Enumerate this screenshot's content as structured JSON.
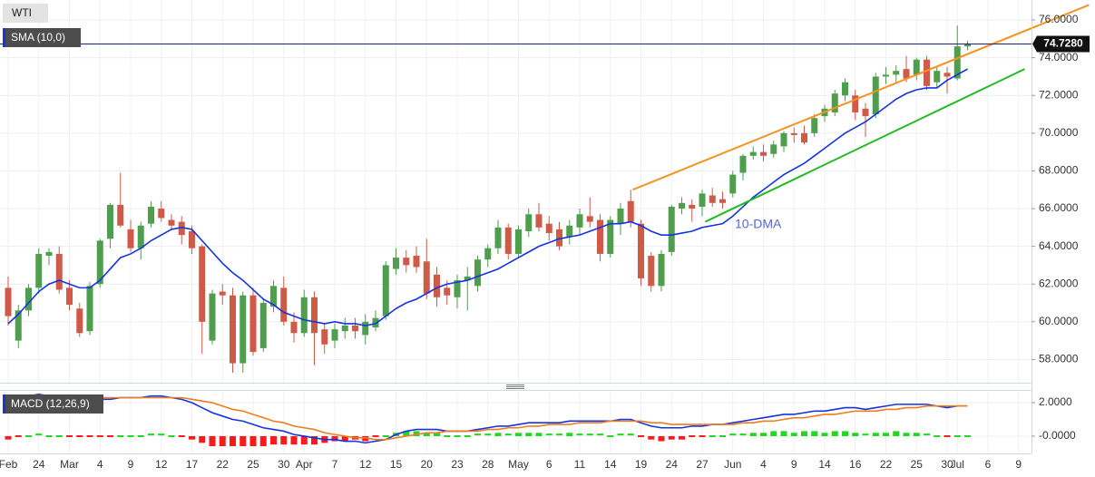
{
  "chart_data": [
    {
      "type": "candlestick",
      "name": "WTI",
      "categories": [
        "Feb",
        null,
        null,
        "24",
        null,
        null,
        "Mar",
        null,
        null,
        "4",
        null,
        null,
        "9",
        null,
        null,
        "12",
        null,
        null,
        "17",
        null,
        null,
        "22",
        null,
        null,
        "25",
        null,
        null,
        "30",
        null,
        "Apr",
        null,
        null,
        "7",
        null,
        null,
        "12",
        null,
        null,
        "15",
        null,
        null,
        "20",
        null,
        null,
        "23",
        null,
        null,
        "28",
        null,
        null,
        "May",
        null,
        null,
        "6",
        null,
        null,
        "11",
        null,
        null,
        "14",
        null,
        null,
        "19",
        null,
        null,
        "24",
        null,
        null,
        "27",
        null,
        null,
        "Jun",
        null,
        null,
        "4",
        null,
        null,
        "9",
        null,
        null,
        "14",
        null,
        null,
        "16",
        null,
        null,
        "22",
        null,
        null,
        "25",
        null,
        null,
        "30",
        "Jul",
        null,
        null,
        "6",
        null,
        null,
        "9"
      ],
      "open": [
        61.8,
        59.0,
        60.6,
        61.8,
        63.5,
        63.6,
        61.8,
        60.7,
        59.5,
        62.0,
        64.4,
        66.2,
        64.9,
        63.9,
        65.2,
        66.0,
        65.4,
        65.3,
        64.8,
        64.0,
        59.0,
        61.6,
        61.4,
        57.8,
        61.4,
        58.6,
        60.8,
        61.8,
        60.0,
        59.4,
        61.3,
        59.6,
        59.0,
        59.5,
        59.8,
        59.3,
        59.7,
        60.3,
        62.8,
        63.4,
        63.5,
        63.2,
        62.5,
        61.8,
        61.3,
        62.2,
        61.9,
        63.3,
        63.9,
        65.0,
        63.6,
        64.8,
        65.7,
        65.2,
        64.9,
        64.5,
        65.0,
        65.6,
        65.4,
        63.6,
        65.2,
        66.4,
        65.2,
        63.5,
        61.9,
        63.7,
        66.0,
        66.2,
        66.1,
        66.7,
        66.5,
        66.8,
        67.9,
        68.8,
        69.0,
        68.9,
        69.3,
        70.0,
        70.0,
        70.0,
        70.9,
        71.1,
        72.0,
        72.0,
        71.3,
        71.0,
        73.0,
        73.1,
        73.4,
        73.1,
        73.9,
        72.7,
        73.2,
        72.9,
        74.6,
        null,
        null,
        null,
        null,
        null
      ],
      "high": [
        62.4,
        60.9,
        62.0,
        63.9,
        63.9,
        64.0,
        62.2,
        61.0,
        62.1,
        64.4,
        66.3,
        67.9,
        65.4,
        65.3,
        66.4,
        66.4,
        65.7,
        65.6,
        65.1,
        64.1,
        61.7,
        62.0,
        61.8,
        61.6,
        61.8,
        61.2,
        62.2,
        62.4,
        60.5,
        61.7,
        61.6,
        59.9,
        59.9,
        60.2,
        60.2,
        60.4,
        60.6,
        63.2,
        63.9,
        63.8,
        64.0,
        64.4,
        62.9,
        62.2,
        62.5,
        62.9,
        63.5,
        64.1,
        65.4,
        65.2,
        65.1,
        66.0,
        66.3,
        65.6,
        65.3,
        65.4,
        66.0,
        66.6,
        65.7,
        65.6,
        66.3,
        67.0,
        65.4,
        63.7,
        63.8,
        66.2,
        66.6,
        66.5,
        67.0,
        67.1,
        66.9,
        68.0,
        68.9,
        69.3,
        69.4,
        69.6,
        70.1,
        70.3,
        70.4,
        71.0,
        71.5,
        72.3,
        72.9,
        72.3,
        71.6,
        73.2,
        73.5,
        73.6,
        74.1,
        74.0,
        74.1,
        73.5,
        73.5,
        75.7,
        74.9,
        null,
        null,
        null,
        null,
        null
      ],
      "low": [
        59.8,
        58.6,
        60.3,
        61.5,
        63.0,
        61.5,
        60.6,
        59.2,
        59.3,
        61.8,
        63.9,
        65.0,
        63.7,
        63.3,
        65.0,
        65.3,
        64.9,
        64.1,
        63.6,
        58.3,
        58.8,
        60.9,
        57.3,
        57.3,
        58.2,
        58.4,
        60.5,
        59.8,
        58.9,
        59.2,
        57.7,
        58.3,
        58.6,
        59.1,
        59.1,
        58.8,
        59.5,
        60.1,
        62.5,
        62.6,
        62.6,
        61.2,
        60.8,
        60.9,
        60.7,
        60.6,
        61.6,
        62.9,
        63.6,
        63.3,
        63.4,
        64.5,
        64.8,
        64.3,
        63.8,
        64.1,
        64.6,
        65.0,
        63.2,
        63.4,
        64.6,
        65.0,
        61.9,
        61.6,
        61.6,
        63.5,
        65.7,
        65.3,
        65.6,
        66.1,
        66.0,
        66.6,
        67.5,
        68.6,
        68.5,
        68.7,
        69.0,
        69.5,
        69.4,
        69.8,
        70.6,
        70.9,
        71.7,
        70.7,
        69.8,
        70.8,
        72.6,
        72.7,
        72.7,
        72.8,
        72.3,
        72.4,
        72.1,
        72.8,
        74.4,
        null,
        null,
        null,
        null,
        null
      ],
      "close": [
        60.3,
        60.6,
        61.8,
        63.6,
        63.7,
        61.7,
        60.9,
        59.4,
        61.9,
        64.3,
        66.2,
        65.1,
        63.9,
        65.1,
        66.1,
        65.5,
        65.1,
        64.6,
        63.9,
        60.0,
        61.5,
        61.4,
        57.8,
        61.4,
        58.4,
        61.0,
        61.9,
        60.0,
        59.4,
        61.3,
        59.4,
        58.8,
        59.6,
        59.8,
        59.5,
        60.0,
        60.2,
        63.0,
        63.4,
        63.0,
        62.9,
        61.5,
        61.3,
        61.4,
        62.2,
        62.4,
        63.3,
        63.9,
        65.0,
        63.6,
        64.9,
        65.7,
        65.0,
        64.7,
        64.0,
        65.1,
        65.7,
        65.3,
        63.6,
        65.4,
        66.0,
        65.3,
        62.3,
        61.9,
        63.6,
        66.1,
        66.3,
        66.0,
        66.8,
        66.3,
        66.3,
        67.8,
        68.8,
        69.0,
        68.8,
        69.4,
        70.0,
        69.9,
        69.5,
        70.8,
        71.3,
        72.1,
        72.7,
        71.1,
        70.9,
        73.0,
        73.1,
        73.3,
        72.9,
        73.9,
        72.5,
        73.3,
        73.0,
        74.6,
        74.73,
        null,
        null,
        null,
        null,
        null
      ],
      "up_color": "#4e9e4e",
      "down_color": "#d05a48",
      "overlays": [
        {
          "type": "line",
          "name": "SMA (10,0)",
          "color": "#1533e0",
          "values": [
            59.9,
            60.4,
            61.0,
            61.6,
            62.0,
            62.2,
            62.0,
            61.8,
            61.8,
            62.2,
            62.8,
            63.4,
            63.6,
            63.9,
            64.3,
            64.6,
            64.9,
            65.0,
            64.9,
            64.3,
            63.7,
            63.1,
            62.6,
            62.2,
            61.7,
            61.2,
            60.9,
            60.5,
            60.3,
            60.1,
            60.0,
            59.9,
            60.0,
            59.9,
            59.9,
            59.8,
            59.9,
            60.3,
            60.7,
            61.0,
            61.2,
            61.5,
            61.8,
            62.0,
            62.1,
            62.2,
            62.4,
            62.6,
            62.8,
            63.1,
            63.4,
            63.7,
            64.0,
            64.2,
            64.4,
            64.5,
            64.6,
            64.8,
            65.0,
            65.2,
            65.2,
            65.3,
            65.1,
            64.8,
            64.6,
            64.6,
            64.7,
            64.8,
            65.0,
            65.1,
            65.2,
            65.6,
            66.1,
            66.6,
            67.0,
            67.4,
            67.8,
            68.1,
            68.4,
            68.8,
            69.2,
            69.6,
            70.0,
            70.3,
            70.6,
            71.0,
            71.4,
            71.8,
            72.1,
            72.3,
            72.4,
            72.4,
            72.8,
            73.1,
            73.4,
            null,
            null,
            null,
            null,
            null
          ]
        }
      ],
      "trendlines": [
        {
          "color": "#f7931e",
          "x": [
            61.2,
            105.9
          ],
          "values": [
            67.0,
            76.8
          ]
        },
        {
          "color": "#22bb22",
          "x": [
            68.3,
            99.6
          ],
          "values": [
            65.3,
            73.4
          ]
        }
      ],
      "price_line": {
        "value": 74.728,
        "label": "74.7280",
        "color": "#1a237e"
      },
      "annotation": "10-DMA",
      "ylim": [
        56.77,
        77.06
      ],
      "yticks": [
        {
          "value": 58,
          "label": "58.0000"
        },
        {
          "value": 60,
          "label": "60.0000"
        },
        {
          "value": 62,
          "label": "62.0000"
        },
        {
          "value": 64,
          "label": "64.0000"
        },
        {
          "value": 66,
          "label": "66.0000"
        },
        {
          "value": 68,
          "label": "68.0000"
        },
        {
          "value": 70,
          "label": "70.0000"
        },
        {
          "value": 72,
          "label": "72.0000"
        },
        {
          "value": 74,
          "label": "74.0000"
        },
        {
          "value": 76,
          "label": "76.0000"
        }
      ],
      "grid": true
    },
    {
      "type": "macd",
      "title": "MACD (12,26,9)",
      "series": [
        {
          "type": "line",
          "color": "#1533e0",
          "values": [
            2.2,
            2.3,
            2.4,
            2.5,
            2.4,
            2.4,
            2.3,
            2.2,
            2.2,
            2.2,
            2.2,
            2.3,
            2.3,
            2.3,
            2.4,
            2.4,
            2.3,
            2.2,
            2.0,
            1.7,
            1.4,
            1.2,
            1.0,
            0.9,
            0.7,
            0.5,
            0.4,
            0.3,
            0.1,
            0.0,
            -0.1,
            -0.2,
            -0.2,
            -0.3,
            -0.3,
            -0.4,
            -0.3,
            -0.2,
            0.1,
            0.3,
            0.4,
            0.4,
            0.4,
            0.3,
            0.3,
            0.3,
            0.4,
            0.5,
            0.6,
            0.6,
            0.7,
            0.8,
            0.8,
            0.8,
            0.8,
            0.9,
            0.9,
            0.9,
            0.9,
            0.9,
            1.0,
            1.0,
            0.8,
            0.6,
            0.5,
            0.5,
            0.5,
            0.6,
            0.6,
            0.7,
            0.7,
            0.8,
            0.9,
            1.0,
            1.1,
            1.2,
            1.3,
            1.3,
            1.4,
            1.5,
            1.5,
            1.6,
            1.7,
            1.7,
            1.6,
            1.7,
            1.8,
            1.9,
            1.9,
            1.9,
            1.9,
            1.8,
            1.7,
            1.8,
            1.8,
            null,
            null,
            null,
            null,
            null
          ]
        },
        {
          "type": "line",
          "color": "#f07c1a",
          "values": [
            2.4,
            2.4,
            2.4,
            2.4,
            2.4,
            2.4,
            2.4,
            2.3,
            2.3,
            2.3,
            2.3,
            2.3,
            2.3,
            2.3,
            2.3,
            2.3,
            2.3,
            2.3,
            2.2,
            2.1,
            2.0,
            1.8,
            1.6,
            1.5,
            1.3,
            1.1,
            0.9,
            0.8,
            0.6,
            0.5,
            0.4,
            0.2,
            0.1,
            0.0,
            -0.1,
            -0.1,
            -0.2,
            -0.2,
            -0.1,
            0.0,
            0.1,
            0.2,
            0.2,
            0.3,
            0.3,
            0.3,
            0.3,
            0.4,
            0.4,
            0.5,
            0.5,
            0.6,
            0.6,
            0.7,
            0.7,
            0.7,
            0.8,
            0.8,
            0.8,
            0.9,
            0.9,
            0.9,
            0.9,
            0.8,
            0.8,
            0.7,
            0.7,
            0.7,
            0.7,
            0.7,
            0.7,
            0.7,
            0.8,
            0.8,
            0.9,
            0.9,
            1.0,
            1.1,
            1.1,
            1.2,
            1.3,
            1.3,
            1.4,
            1.5,
            1.5,
            1.5,
            1.6,
            1.6,
            1.7,
            1.7,
            1.8,
            1.8,
            1.8,
            1.8,
            1.8,
            null,
            null,
            null,
            null,
            null
          ]
        },
        {
          "type": "histogram",
          "up_color": "#1fd81f",
          "down_color": "#ff1a1a",
          "values": [
            -0.2,
            -0.1,
            0,
            0.1,
            0,
            0,
            -0.1,
            -0.1,
            -0.1,
            -0.1,
            -0.1,
            0,
            0,
            0,
            0.1,
            0.1,
            0,
            -0.1,
            -0.2,
            -0.4,
            -0.6,
            -0.6,
            -0.6,
            -0.6,
            -0.6,
            -0.6,
            -0.5,
            -0.5,
            -0.5,
            -0.5,
            -0.5,
            -0.4,
            -0.3,
            -0.3,
            -0.2,
            -0.3,
            -0.1,
            0,
            0.2,
            0.3,
            0.3,
            0.2,
            0.2,
            0,
            0,
            0,
            0.1,
            0.1,
            0.2,
            0.1,
            0.2,
            0.2,
            0.2,
            0.1,
            0.1,
            0.2,
            0.1,
            0.1,
            0.1,
            0,
            0.1,
            0.1,
            -0.1,
            -0.2,
            -0.3,
            -0.2,
            -0.2,
            -0.1,
            -0.1,
            0,
            0,
            0.1,
            0.1,
            0.2,
            0.2,
            0.3,
            0.3,
            0.2,
            0.3,
            0.3,
            0.2,
            0.3,
            0.3,
            0.2,
            0.1,
            0.2,
            0.2,
            0.3,
            0.2,
            0.2,
            0.1,
            0,
            -0.1,
            0,
            0,
            null,
            null,
            null,
            null,
            null
          ]
        }
      ],
      "ylim": [
        -1.03,
        2.76
      ],
      "yticks": [
        {
          "value": 0,
          "label": "-0.0000"
        },
        {
          "value": 2,
          "label": "2.0000"
        }
      ]
    }
  ]
}
